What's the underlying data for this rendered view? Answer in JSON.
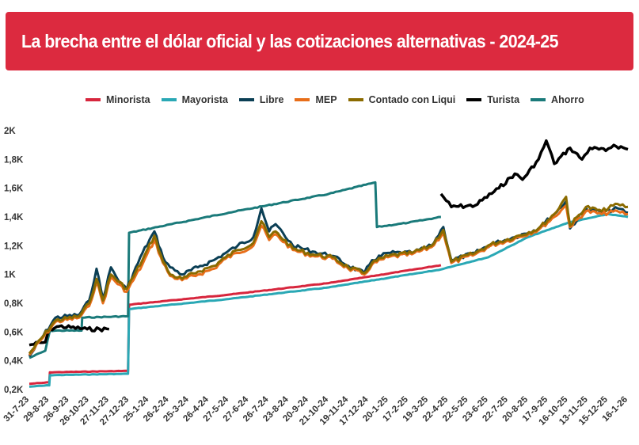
{
  "title": "La brecha entre el dólar oficial y las cotizaciones alternativas - 2024-25",
  "chart_data": {
    "type": "line",
    "title": "La brecha entre el dólar oficial y las cotizaciones alternativas - 2024-25",
    "xlabel": "",
    "ylabel": "",
    "ylim": [
      200,
      2000
    ],
    "grid": false,
    "legend_position": "top-center",
    "x_ticks": [
      "31-7-23",
      "29-8-23",
      "26-9-23",
      "26-10-23",
      "27-11-23",
      "27-12-23",
      "25-1-24",
      "26-2-24",
      "25-3-24",
      "26-4-24",
      "27-5-24",
      "27-6-24",
      "26-7-24",
      "23-8-24",
      "20-9-24",
      "21-10-24",
      "19-11-24",
      "17-12-24",
      "20-1-25",
      "17-2-25",
      "19-3-25",
      "22-4-25",
      "22-5-25",
      "23-6-25",
      "22-7-25",
      "20-8-25",
      "17-9-25",
      "16-10-25",
      "13-11-25",
      "15-12-25",
      "16-1-26"
    ],
    "y_ticks": [
      {
        "value": 2000,
        "label": "2K"
      },
      {
        "value": 1800,
        "label": "1,8K"
      },
      {
        "value": 1600,
        "label": "1,6K"
      },
      {
        "value": 1400,
        "label": "1,4K"
      },
      {
        "value": 1200,
        "label": "1,2K"
      },
      {
        "value": 1000,
        "label": "1K"
      },
      {
        "value": 800,
        "label": "0,8K"
      },
      {
        "value": 600,
        "label": "0,6K"
      },
      {
        "value": 400,
        "label": "0,4K"
      },
      {
        "value": 200,
        "label": "0,2K"
      }
    ],
    "series": [
      {
        "name": "Minorista",
        "color": "#d7263d",
        "points": [
          [
            0,
            240
          ],
          [
            1,
            250
          ],
          [
            1.03,
            320
          ],
          [
            4.95,
            330
          ],
          [
            5,
            790
          ],
          [
            10,
            860
          ],
          [
            15,
            940
          ],
          [
            20.63,
            1065
          ]
        ]
      },
      {
        "name": "Mayorista",
        "color": "#2aa8b5",
        "points": [
          [
            0,
            220
          ],
          [
            1,
            230
          ],
          [
            1.03,
            300
          ],
          [
            4.95,
            310
          ],
          [
            5,
            760
          ],
          [
            10,
            830
          ],
          [
            15,
            910
          ],
          [
            20.63,
            1035
          ],
          [
            21,
            1050
          ],
          [
            23,
            1120
          ],
          [
            25,
            1260
          ],
          [
            27,
            1360
          ],
          [
            29,
            1420
          ],
          [
            30,
            1400
          ]
        ]
      },
      {
        "name": "Ahorro",
        "color": "#1a7a7a",
        "points": [
          [
            0,
            420
          ],
          [
            0.8,
            470
          ],
          [
            1.03,
            610
          ],
          [
            2.62,
            610
          ],
          [
            2.65,
            700
          ],
          [
            4.95,
            710
          ],
          [
            5,
            1290
          ],
          [
            10,
            1430
          ],
          [
            15,
            1560
          ],
          [
            17.34,
            1640
          ],
          [
            17.42,
            1330
          ],
          [
            19,
            1360
          ],
          [
            20.63,
            1400
          ]
        ]
      },
      {
        "name": "Libre",
        "color": "#0b3f55",
        "points": [
          [
            0,
            430
          ],
          [
            1.31,
            700
          ],
          [
            2.5,
            720
          ],
          [
            3.0,
            820
          ],
          [
            3.37,
            1040
          ],
          [
            3.69,
            830
          ],
          [
            4.09,
            1050
          ],
          [
            4.5,
            950
          ],
          [
            4.88,
            900
          ],
          [
            5.67,
            1150
          ],
          [
            6.27,
            1300
          ],
          [
            6.7,
            1120
          ],
          [
            7.06,
            1050
          ],
          [
            7.66,
            1000
          ],
          [
            8.45,
            1050
          ],
          [
            9.25,
            1100
          ],
          [
            9.84,
            1150
          ],
          [
            10.44,
            1200
          ],
          [
            11.23,
            1260
          ],
          [
            11.63,
            1460
          ],
          [
            12.02,
            1300
          ],
          [
            12.34,
            1350
          ],
          [
            13.21,
            1200
          ],
          [
            14.2,
            1160
          ],
          [
            15.2,
            1130
          ],
          [
            15.99,
            1060
          ],
          [
            16.79,
            1010
          ],
          [
            17.18,
            1100
          ],
          [
            17.98,
            1150
          ],
          [
            19.17,
            1150
          ],
          [
            20.16,
            1200
          ],
          [
            20.75,
            1330
          ],
          [
            21.15,
            1100
          ],
          [
            22.34,
            1150
          ],
          [
            23.13,
            1210
          ],
          [
            24.33,
            1260
          ],
          [
            25.52,
            1320
          ],
          [
            26.31,
            1420
          ],
          [
            26.9,
            1510
          ],
          [
            27.1,
            1320
          ],
          [
            27.9,
            1460
          ],
          [
            28.69,
            1430
          ],
          [
            29.48,
            1460
          ],
          [
            30,
            1430
          ]
        ]
      },
      {
        "name": "MEP",
        "color": "#e86e1a",
        "points": [
          [
            0,
            440
          ],
          [
            1.31,
            670
          ],
          [
            2.5,
            700
          ],
          [
            3.0,
            780
          ],
          [
            3.37,
            950
          ],
          [
            3.69,
            800
          ],
          [
            4.09,
            980
          ],
          [
            4.88,
            880
          ],
          [
            5.67,
            1070
          ],
          [
            6.27,
            1240
          ],
          [
            6.7,
            1080
          ],
          [
            7.06,
            990
          ],
          [
            7.66,
            960
          ],
          [
            8.45,
            1000
          ],
          [
            9.25,
            1040
          ],
          [
            9.84,
            1110
          ],
          [
            10.44,
            1150
          ],
          [
            11.23,
            1200
          ],
          [
            11.63,
            1340
          ],
          [
            12.02,
            1240
          ],
          [
            12.34,
            1280
          ],
          [
            13.21,
            1170
          ],
          [
            14.2,
            1130
          ],
          [
            15.2,
            1110
          ],
          [
            15.99,
            1040
          ],
          [
            16.79,
            1000
          ],
          [
            17.18,
            1070
          ],
          [
            17.98,
            1120
          ],
          [
            19.17,
            1140
          ],
          [
            20.16,
            1190
          ],
          [
            20.75,
            1290
          ],
          [
            21.15,
            1080
          ],
          [
            22.34,
            1140
          ],
          [
            23.13,
            1200
          ],
          [
            24.33,
            1250
          ],
          [
            25.52,
            1310
          ],
          [
            26.31,
            1400
          ],
          [
            26.9,
            1480
          ],
          [
            27.1,
            1330
          ],
          [
            27.9,
            1440
          ],
          [
            28.69,
            1420
          ],
          [
            29.48,
            1440
          ],
          [
            30,
            1420
          ]
        ]
      },
      {
        "name": "Contado con Liqui",
        "color": "#8b6b00",
        "points": [
          [
            0,
            450
          ],
          [
            1.31,
            680
          ],
          [
            2.5,
            710
          ],
          [
            3.0,
            800
          ],
          [
            3.37,
            970
          ],
          [
            3.69,
            820
          ],
          [
            4.09,
            1000
          ],
          [
            4.88,
            900
          ],
          [
            5.67,
            1100
          ],
          [
            6.27,
            1270
          ],
          [
            6.7,
            1090
          ],
          [
            7.06,
            1000
          ],
          [
            7.66,
            970
          ],
          [
            8.45,
            1020
          ],
          [
            9.25,
            1060
          ],
          [
            9.84,
            1120
          ],
          [
            10.44,
            1170
          ],
          [
            11.23,
            1220
          ],
          [
            11.63,
            1370
          ],
          [
            12.02,
            1260
          ],
          [
            12.34,
            1300
          ],
          [
            13.21,
            1180
          ],
          [
            14.2,
            1140
          ],
          [
            15.2,
            1120
          ],
          [
            15.99,
            1050
          ],
          [
            16.79,
            1010
          ],
          [
            17.18,
            1080
          ],
          [
            17.98,
            1130
          ],
          [
            19.17,
            1150
          ],
          [
            20.16,
            1200
          ],
          [
            20.75,
            1310
          ],
          [
            21.15,
            1090
          ],
          [
            22.34,
            1150
          ],
          [
            23.13,
            1210
          ],
          [
            24.33,
            1260
          ],
          [
            25.52,
            1320
          ],
          [
            26.31,
            1420
          ],
          [
            26.9,
            1540
          ],
          [
            27.1,
            1340
          ],
          [
            27.9,
            1470
          ],
          [
            28.69,
            1440
          ],
          [
            29.48,
            1490
          ],
          [
            30,
            1470
          ]
        ]
      },
      {
        "name": "Turista",
        "color": "#000000",
        "points": [
          [
            0,
            510
          ],
          [
            0.8,
            530
          ],
          [
            1.03,
            620
          ],
          [
            1.5,
            640
          ],
          [
            2.9,
            620
          ],
          [
            4.0,
            620
          ],
          [
            20.63,
            1560
          ],
          [
            21.15,
            1470
          ],
          [
            22.34,
            1480
          ],
          [
            23.53,
            1600
          ],
          [
            24.33,
            1700
          ],
          [
            24.72,
            1660
          ],
          [
            25.52,
            1800
          ],
          [
            25.91,
            1930
          ],
          [
            26.31,
            1770
          ],
          [
            27.1,
            1880
          ],
          [
            27.7,
            1800
          ],
          [
            28.1,
            1880
          ],
          [
            28.89,
            1860
          ],
          [
            29.29,
            1900
          ],
          [
            30,
            1870
          ]
        ]
      }
    ]
  }
}
